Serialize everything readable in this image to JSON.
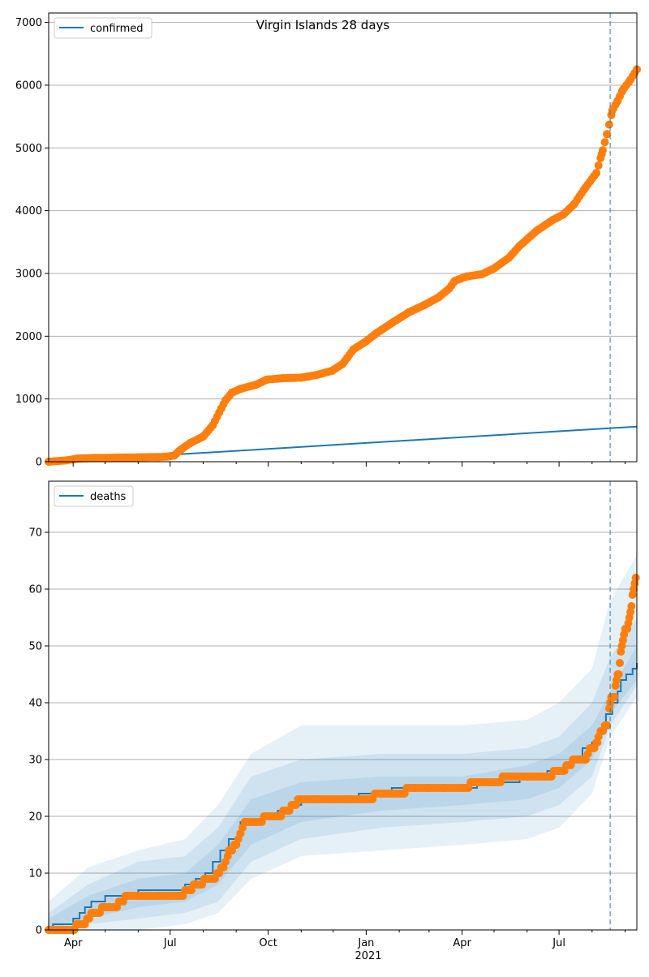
{
  "chart_data": [
    {
      "type": "line",
      "title": "Virgin Islands 28 days",
      "xaxis": {
        "kind": "date",
        "range": [
          "2020-03-09",
          "2021-09-12"
        ]
      },
      "ylim": [
        0,
        7150
      ],
      "yticks": [
        0,
        1000,
        2000,
        3000,
        4000,
        5000,
        6000,
        7000
      ],
      "grid": "horizontal",
      "legend": {
        "placement": "top-left",
        "entries": [
          "confirmed"
        ]
      },
      "forecast_start": "2021-08-18",
      "series": [
        {
          "name": "confirmed",
          "style": "line",
          "color": "#1f77b4",
          "x": [
            "2020-03-09",
            "2020-07-01",
            "2021-09-12"
          ],
          "y": [
            0,
            110,
            560
          ]
        },
        {
          "style": "markers",
          "color": "#ff7f0e",
          "x": [
            "2020-03-09",
            "2020-03-25",
            "2020-04-05",
            "2020-04-20",
            "2020-05-10",
            "2020-06-01",
            "2020-06-20",
            "2020-06-28",
            "2020-07-05",
            "2020-07-10",
            "2020-07-20",
            "2020-08-01",
            "2020-08-10",
            "2020-08-18",
            "2020-08-22",
            "2020-08-28",
            "2020-09-05",
            "2020-09-20",
            "2020-09-30",
            "2020-10-15",
            "2020-11-01",
            "2020-11-15",
            "2020-11-30",
            "2020-12-10",
            "2020-12-20",
            "2021-01-01",
            "2021-01-10",
            "2021-01-25",
            "2021-02-10",
            "2021-02-25",
            "2021-03-10",
            "2021-03-20",
            "2021-03-25",
            "2021-04-05",
            "2021-04-20",
            "2021-05-01",
            "2021-05-15",
            "2021-05-25",
            "2021-06-10",
            "2021-06-25",
            "2021-07-05",
            "2021-07-15",
            "2021-07-25",
            "2021-08-05",
            "2021-08-10",
            "2021-08-15",
            "2021-08-20",
            "2021-08-25",
            "2021-08-30",
            "2021-09-05",
            "2021-09-12"
          ],
          "y": [
            0,
            20,
            50,
            60,
            65,
            70,
            75,
            80,
            100,
            180,
            300,
            400,
            580,
            850,
            980,
            1100,
            1160,
            1230,
            1310,
            1330,
            1340,
            1380,
            1450,
            1560,
            1790,
            1920,
            2040,
            2210,
            2380,
            2500,
            2620,
            2760,
            2880,
            2950,
            2990,
            3080,
            3250,
            3440,
            3680,
            3850,
            3940,
            4100,
            4350,
            4600,
            4900,
            5220,
            5600,
            5750,
            5930,
            6060,
            6250
          ]
        }
      ]
    },
    {
      "type": "line",
      "xaxis": {
        "kind": "date",
        "range": [
          "2020-03-09",
          "2021-09-12"
        ],
        "ticklabels": [
          "Apr",
          "Jul",
          "Oct",
          "Jan",
          "Apr",
          "Jul"
        ],
        "year_label": "2021"
      },
      "ylim": [
        0,
        79
      ],
      "yticks": [
        0,
        10,
        20,
        30,
        40,
        50,
        60,
        70
      ],
      "grid": "horizontal",
      "legend": {
        "placement": "top-left",
        "entries": [
          "deaths"
        ]
      },
      "forecast_start": "2021-08-18",
      "series": [
        {
          "name": "deaths",
          "style": "step",
          "color": "#1f77b4",
          "x": [
            "2020-03-09",
            "2020-03-13",
            "2020-04-01",
            "2020-04-07",
            "2020-04-12",
            "2020-04-18",
            "2020-05-01",
            "2020-05-10",
            "2020-06-01",
            "2020-06-25",
            "2020-07-15",
            "2020-07-25",
            "2020-08-03",
            "2020-08-10",
            "2020-08-17",
            "2020-08-25",
            "2020-09-05",
            "2020-09-25",
            "2020-10-10",
            "2020-10-22",
            "2020-11-01",
            "2020-12-25",
            "2021-01-25",
            "2021-03-05",
            "2021-04-15",
            "2021-05-25",
            "2021-06-20",
            "2021-07-05",
            "2021-07-15",
            "2021-07-23",
            "2021-08-01",
            "2021-08-08",
            "2021-08-14",
            "2021-08-20",
            "2021-08-25",
            "2021-08-28",
            "2021-09-02",
            "2021-09-08",
            "2021-09-12"
          ],
          "y": [
            0,
            1,
            2,
            3,
            4,
            5,
            6,
            6,
            7,
            7,
            8,
            9,
            10,
            12,
            14,
            16,
            19,
            20,
            21,
            22,
            23,
            24,
            25,
            25,
            26,
            27,
            28,
            29,
            30,
            32,
            33,
            35,
            38,
            40,
            42,
            44,
            45,
            46,
            47
          ]
        },
        {
          "name": "deaths-band-inner",
          "style": "band",
          "color": "#1f77b4",
          "x": [
            "2020-03-09",
            "2020-04-15",
            "2020-06-01",
            "2020-07-15",
            "2020-08-15",
            "2020-09-15",
            "2020-11-01",
            "2021-01-15",
            "2021-04-01",
            "2021-06-01",
            "2021-07-01",
            "2021-08-01",
            "2021-08-18",
            "2021-09-12"
          ],
          "lower": [
            0,
            2,
            4,
            5,
            8,
            15,
            19,
            21,
            22,
            23,
            25,
            30,
            38,
            44
          ],
          "upper": [
            2,
            6,
            9,
            10,
            15,
            23,
            26,
            27,
            27,
            29,
            31,
            36,
            42,
            50
          ]
        },
        {
          "name": "deaths-band-mid",
          "style": "band",
          "color": "#1f77b4",
          "x": [
            "2020-03-09",
            "2020-04-15",
            "2020-06-01",
            "2020-07-15",
            "2020-08-15",
            "2020-09-15",
            "2020-11-01",
            "2021-01-15",
            "2021-04-01",
            "2021-06-01",
            "2021-07-01",
            "2021-08-01",
            "2021-08-18",
            "2021-09-12"
          ],
          "lower": [
            0,
            1,
            2,
            3,
            5,
            12,
            16,
            18,
            19,
            20,
            22,
            27,
            36,
            43
          ],
          "upper": [
            3,
            8,
            12,
            13,
            18,
            27,
            30,
            31,
            31,
            32,
            34,
            40,
            48,
            55
          ]
        },
        {
          "name": "deaths-band-outer",
          "style": "band",
          "color": "#1f77b4",
          "x": [
            "2020-03-09",
            "2020-04-15",
            "2020-06-01",
            "2020-07-15",
            "2020-08-15",
            "2020-09-15",
            "2020-11-01",
            "2021-01-15",
            "2021-04-01",
            "2021-06-01",
            "2021-07-01",
            "2021-08-01",
            "2021-08-18",
            "2021-09-12"
          ],
          "lower": [
            0,
            0,
            0,
            1,
            3,
            9,
            13,
            14,
            15,
            16,
            18,
            24,
            34,
            41
          ],
          "upper": [
            5,
            11,
            14,
            16,
            22,
            31,
            36,
            36,
            36,
            37,
            40,
            46,
            58,
            66
          ]
        },
        {
          "style": "markers",
          "color": "#ff7f0e",
          "x": [
            "2020-03-09",
            "2020-03-15",
            "2020-03-25",
            "2020-04-01",
            "2020-04-05",
            "2020-04-10",
            "2020-04-15",
            "2020-04-20",
            "2020-04-25",
            "2020-05-01",
            "2020-05-05",
            "2020-05-10",
            "2020-05-15",
            "2020-05-22",
            "2020-06-01",
            "2020-06-10",
            "2020-06-20",
            "2020-07-01",
            "2020-07-10",
            "2020-07-20",
            "2020-07-25",
            "2020-07-30",
            "2020-08-05",
            "2020-08-10",
            "2020-08-15",
            "2020-08-20",
            "2020-08-25",
            "2020-08-28",
            "2020-09-01",
            "2020-09-05",
            "2020-09-10",
            "2020-09-20",
            "2020-10-01",
            "2020-10-10",
            "2020-10-20",
            "2020-11-01",
            "2020-11-15",
            "2020-12-01",
            "2020-12-15",
            "2021-01-01",
            "2021-01-15",
            "2021-02-01",
            "2021-02-15",
            "2021-03-01",
            "2021-03-15",
            "2021-04-01",
            "2021-04-15",
            "2021-05-01",
            "2021-05-15",
            "2021-06-01",
            "2021-06-10",
            "2021-06-20",
            "2021-07-01",
            "2021-07-05",
            "2021-07-15",
            "2021-07-20",
            "2021-07-25",
            "2021-07-30",
            "2021-08-03",
            "2021-08-06",
            "2021-08-10",
            "2021-08-15",
            "2021-08-18",
            "2021-08-20",
            "2021-08-22",
            "2021-08-24",
            "2021-08-26",
            "2021-08-28",
            "2021-08-30",
            "2021-09-01",
            "2021-09-03",
            "2021-09-05",
            "2021-09-07",
            "2021-09-09",
            "2021-09-11"
          ],
          "y": [
            0,
            0,
            0,
            0,
            1,
            1,
            2,
            3,
            3,
            4,
            4,
            4,
            5,
            6,
            6,
            6,
            6,
            6,
            6,
            7,
            8,
            8,
            9,
            9,
            10,
            11,
            14,
            14,
            15,
            17,
            19,
            19,
            20,
            20,
            21,
            23,
            23,
            23,
            23,
            23,
            24,
            24,
            25,
            25,
            25,
            25,
            26,
            26,
            27,
            27,
            27,
            27,
            28,
            28,
            30,
            30,
            30,
            32,
            32,
            33,
            35,
            36,
            40,
            41,
            41,
            44,
            45,
            49,
            51,
            53,
            53,
            55,
            57,
            60,
            62
          ]
        }
      ]
    }
  ]
}
